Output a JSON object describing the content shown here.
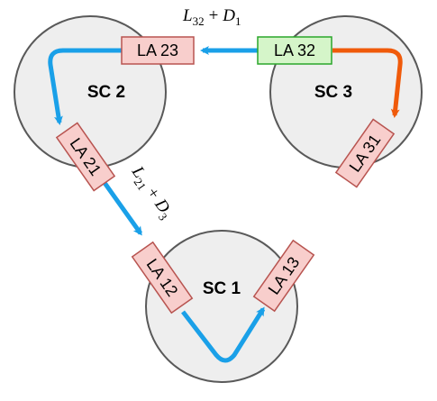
{
  "diagram": {
    "clusters": {
      "sc1": {
        "label": "SC 1"
      },
      "sc2": {
        "label": "SC 2"
      },
      "sc3": {
        "label": "SC 3"
      }
    },
    "boxes": {
      "la23": {
        "label": "LA 23",
        "fill": "#f8cecc",
        "stroke": "#b85450"
      },
      "la32": {
        "label": "LA 32",
        "fill": "#d5f5c9",
        "stroke": "#2aa62a"
      },
      "la21": {
        "label": "LA 21",
        "fill": "#f8cecc",
        "stroke": "#b85450"
      },
      "la31": {
        "label": "LA 31",
        "fill": "#f8cecc",
        "stroke": "#b85450"
      },
      "la12": {
        "label": "LA 12",
        "fill": "#f8cecc",
        "stroke": "#b85450"
      },
      "la13": {
        "label": "LA 13",
        "fill": "#f8cecc",
        "stroke": "#b85450"
      }
    },
    "edge_labels": {
      "top": {
        "l": "L",
        "l_sub": "32",
        "plus": "+",
        "d": "D",
        "d_sub": "1"
      },
      "left": {
        "l": "L",
        "l_sub": "21",
        "plus": "+",
        "d": "D",
        "d_sub": "3"
      }
    },
    "colors": {
      "blue_arrow": "#1aa0e8",
      "orange_arrow": "#f05a0a"
    }
  }
}
